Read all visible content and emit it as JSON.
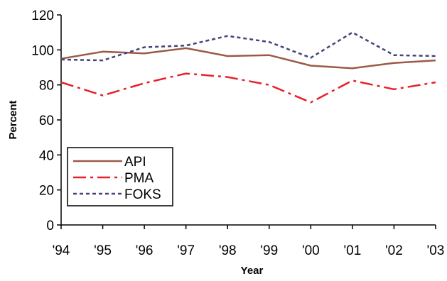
{
  "chart_data": {
    "type": "line",
    "xlabel": "Year",
    "ylabel": "Percent",
    "categories": [
      "'94",
      "'95",
      "'96",
      "'97",
      "'98",
      "'99",
      "'00",
      "'01",
      "'02",
      "'03"
    ],
    "ylim": [
      0,
      120
    ],
    "yticks": [
      "0",
      "20",
      "40",
      "60",
      "80",
      "100",
      "120"
    ],
    "grid": false,
    "legend_position": "bottom-left",
    "series": [
      {
        "name": "API",
        "color": "#9c5a46",
        "dash": "solid",
        "values": [
          95,
          99,
          98,
          101,
          96.5,
          97,
          91,
          89.5,
          92.5,
          94
        ]
      },
      {
        "name": "PMA",
        "color": "#e8202a",
        "dash": "dash-dot",
        "values": [
          81.5,
          74,
          81,
          86.5,
          84.5,
          80,
          70,
          82.5,
          77.5,
          81.5
        ]
      },
      {
        "name": "FOKS",
        "color": "#44447a",
        "dash": "dotted",
        "values": [
          94.5,
          94,
          101.5,
          102.5,
          108,
          104.5,
          95.5,
          110,
          97,
          96.5
        ]
      }
    ]
  }
}
